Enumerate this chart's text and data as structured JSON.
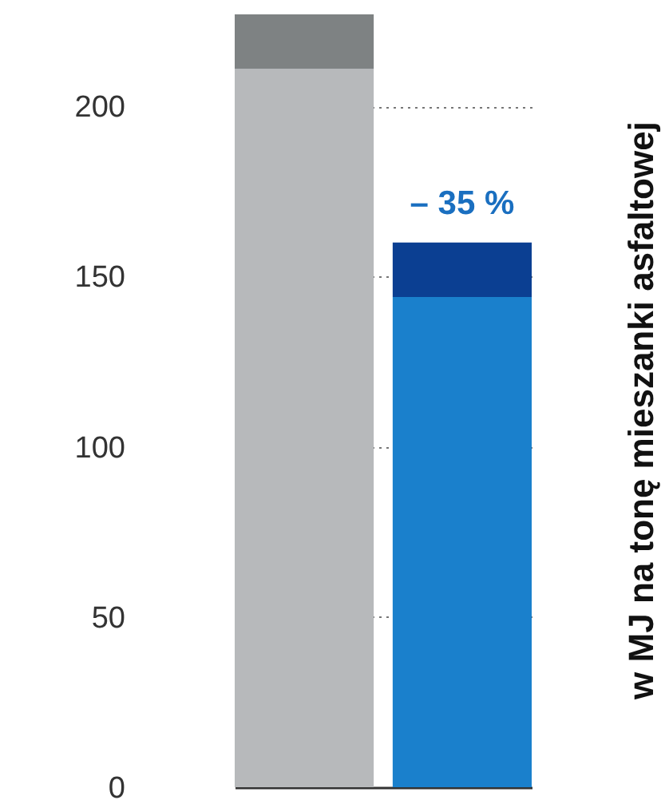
{
  "chart_data": {
    "type": "bar",
    "stacked": true,
    "categories": [
      null,
      null
    ],
    "series": [
      {
        "colors": [
          "#b7b9bb",
          "#1a80cc"
        ],
        "values": [
          211,
          144
        ]
      },
      {
        "colors": [
          "#7e8283",
          "#0b3f92"
        ],
        "values": [
          16,
          16
        ]
      }
    ],
    "ylim": [
      0,
      227
    ],
    "yticks": [
      0,
      50,
      100,
      150,
      200
    ],
    "grid": "y",
    "legend": false,
    "ylabel": "w MJ na tonę mieszanki asfaltowej",
    "annotations": [
      {
        "text": "– 35 %",
        "y": 160
      }
    ]
  }
}
